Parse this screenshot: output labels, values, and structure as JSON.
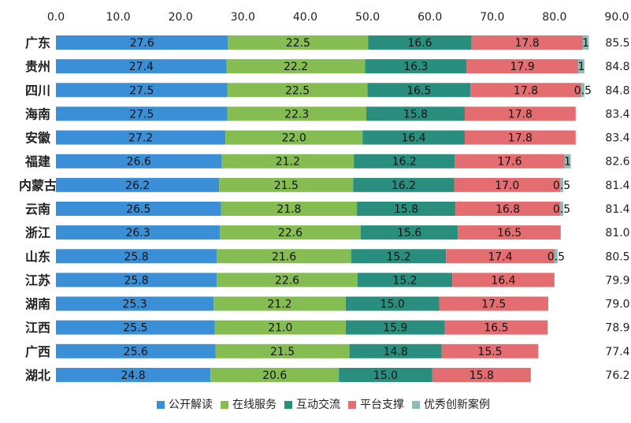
{
  "chart_data": {
    "type": "bar",
    "orientation": "horizontal",
    "stacked": true,
    "title": "",
    "xlabel": "",
    "ylabel": "",
    "xlim": [
      0,
      90
    ],
    "x_ticks": [
      "0.0",
      "10.0",
      "20.0",
      "30.0",
      "40.0",
      "50.0",
      "60.0",
      "70.0",
      "80.0",
      "90.0"
    ],
    "x_axis_position": "top",
    "grid": false,
    "legend_position": "bottom",
    "categories": [
      "广东",
      "贵州",
      "四川",
      "海南",
      "安徽",
      "福建",
      "内蒙古",
      "云南",
      "浙江",
      "山东",
      "江苏",
      "湖南",
      "江西",
      "广西",
      "湖北"
    ],
    "series": [
      {
        "name": "公开解读",
        "color": "#3b8fd6",
        "values": [
          27.6,
          27.4,
          27.5,
          27.5,
          27.2,
          26.6,
          26.2,
          26.5,
          26.3,
          25.8,
          25.8,
          25.3,
          25.5,
          25.6,
          24.8
        ],
        "labels": [
          "27.6",
          "27.4",
          "27.5",
          "27.5",
          "27.2",
          "26.6",
          "26.2",
          "26.5",
          "26.3",
          "25.8",
          "25.8",
          "25.3",
          "25.5",
          "25.6",
          "24.8"
        ]
      },
      {
        "name": "在线服务",
        "color": "#86bd52",
        "values": [
          22.5,
          22.2,
          22.5,
          22.3,
          22.0,
          21.2,
          21.5,
          21.8,
          22.6,
          21.6,
          22.6,
          21.2,
          21.0,
          21.5,
          20.6
        ],
        "labels": [
          "22.5",
          "22.2",
          "22.5",
          "22.3",
          "22.0",
          "21.2",
          "21.5",
          "21.8",
          "22.6",
          "21.6",
          "22.6",
          "21.2",
          "21.0",
          "21.5",
          "20.6"
        ]
      },
      {
        "name": "互动交流",
        "color": "#2a8e7f",
        "values": [
          16.6,
          16.3,
          16.5,
          15.8,
          16.4,
          16.2,
          16.2,
          15.8,
          15.6,
          15.2,
          15.2,
          15.0,
          15.9,
          14.8,
          15.0
        ],
        "labels": [
          "16.6",
          "16.3",
          "16.5",
          "15.8",
          "16.4",
          "16.2",
          "16.2",
          "15.8",
          "15.6",
          "15.2",
          "15.2",
          "15.0",
          "15.9",
          "14.8",
          "15.0"
        ]
      },
      {
        "name": "平台支撑",
        "color": "#e36d70",
        "values": [
          17.8,
          17.9,
          17.8,
          17.8,
          17.8,
          17.6,
          17.0,
          16.8,
          16.5,
          17.4,
          16.4,
          17.5,
          16.5,
          15.5,
          15.8
        ],
        "labels": [
          "17.8",
          "17.9",
          "17.8",
          "17.8",
          "17.8",
          "17.6",
          "17.0",
          "16.8",
          "16.5",
          "17.4",
          "16.4",
          "17.5",
          "16.5",
          "15.5",
          "15.8"
        ]
      },
      {
        "name": "优秀创新案例",
        "color": "#8bbdb6",
        "values": [
          1,
          1,
          0.5,
          0,
          0,
          1,
          0.5,
          0.5,
          0,
          0.5,
          0,
          0,
          0,
          0,
          0
        ],
        "labels": [
          "1",
          "1",
          "0.5",
          "",
          "",
          "1",
          "0.5",
          "0.5",
          "",
          "0.5",
          "",
          "",
          "",
          "",
          ""
        ]
      }
    ],
    "totals": [
      "85.5",
      "84.8",
      "84.8",
      "83.4",
      "83.4",
      "82.6",
      "81.4",
      "81.4",
      "81.0",
      "80.5",
      "79.9",
      "79.0",
      "78.9",
      "77.4",
      "76.2"
    ]
  }
}
